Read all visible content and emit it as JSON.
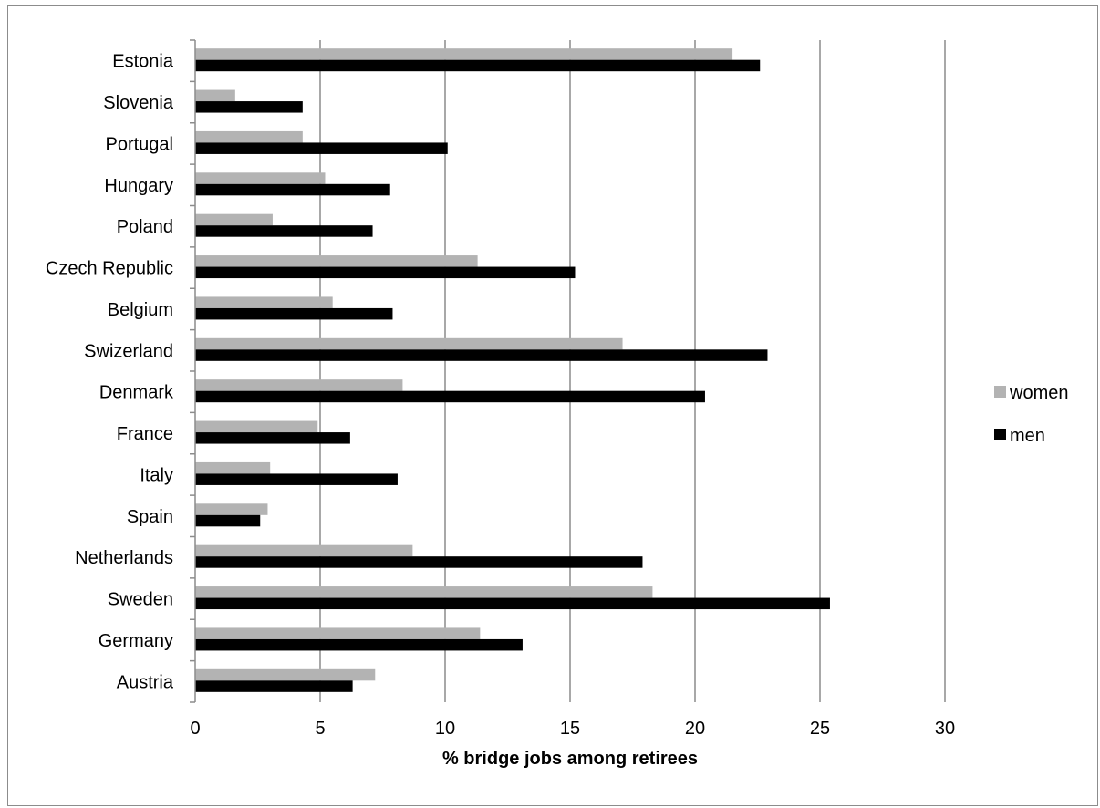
{
  "chart_data": {
    "type": "bar",
    "orientation": "horizontal",
    "title": "",
    "xlabel": "% bridge jobs among retirees",
    "ylabel": "",
    "xlim": [
      0,
      30
    ],
    "xticks": [
      0,
      5,
      10,
      15,
      20,
      25,
      30
    ],
    "grid": "vertical",
    "legend_position": "right",
    "categories": [
      "Estonia",
      "Slovenia",
      "Portugal",
      "Hungary",
      "Poland",
      "Czech Republic",
      "Belgium",
      "Swizerland",
      "Denmark",
      "France",
      "Italy",
      "Spain",
      "Netherlands",
      "Sweden",
      "Germany",
      "Austria"
    ],
    "series": [
      {
        "name": "women",
        "color": "#b3b3b3",
        "values": [
          21.5,
          1.6,
          4.3,
          5.2,
          3.1,
          11.3,
          5.5,
          17.1,
          8.3,
          4.9,
          3.0,
          2.9,
          8.7,
          18.3,
          11.4,
          7.2
        ]
      },
      {
        "name": "men",
        "color": "#000000",
        "values": [
          22.6,
          4.3,
          10.1,
          7.8,
          7.1,
          15.2,
          7.9,
          22.9,
          20.4,
          6.2,
          8.1,
          2.6,
          17.9,
          25.4,
          13.1,
          6.3
        ]
      }
    ]
  }
}
